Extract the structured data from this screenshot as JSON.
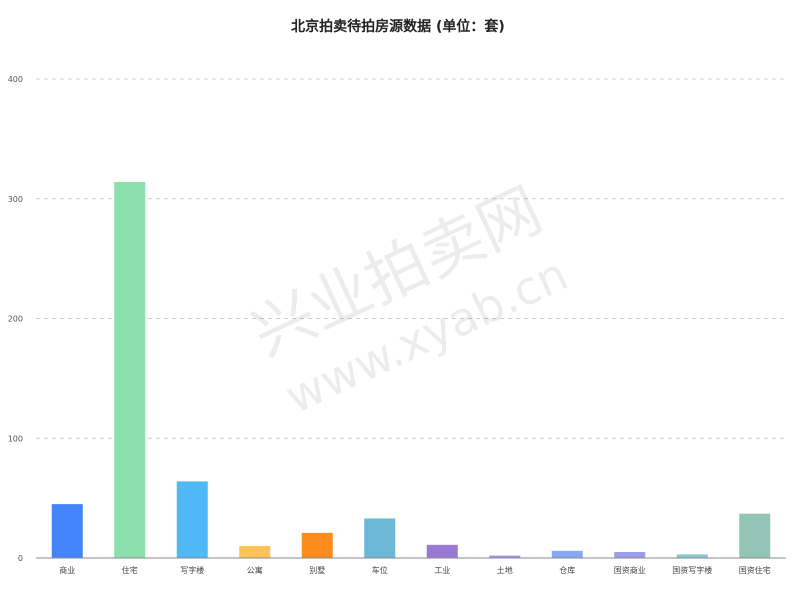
{
  "chart_data": {
    "type": "bar",
    "title": "北京拍卖待拍房源数据 (单位：套)",
    "categories": [
      "商业",
      "住宅",
      "写字楼",
      "公寓",
      "别墅",
      "车位",
      "工业",
      "土地",
      "仓库",
      "国资商业",
      "国资写字楼",
      "国资住宅"
    ],
    "values": [
      45,
      314,
      64,
      10,
      21,
      33,
      11,
      2,
      6,
      5,
      3,
      37
    ],
    "colors": [
      "#4384fa",
      "#8be0ab",
      "#4fb9f5",
      "#fdc453",
      "#fc8c1e",
      "#6cb8d6",
      "#9a79d5",
      "#9b95e8",
      "#86a9f5",
      "#9a9ee8",
      "#88c7d2",
      "#93c4b6"
    ],
    "ylim": [
      0,
      400
    ],
    "yticks": [
      0,
      100,
      200,
      300,
      400
    ],
    "grid": true,
    "legend": "none"
  },
  "watermark": {
    "brand": "兴业拍卖网",
    "url": "www.xyab.cn"
  }
}
